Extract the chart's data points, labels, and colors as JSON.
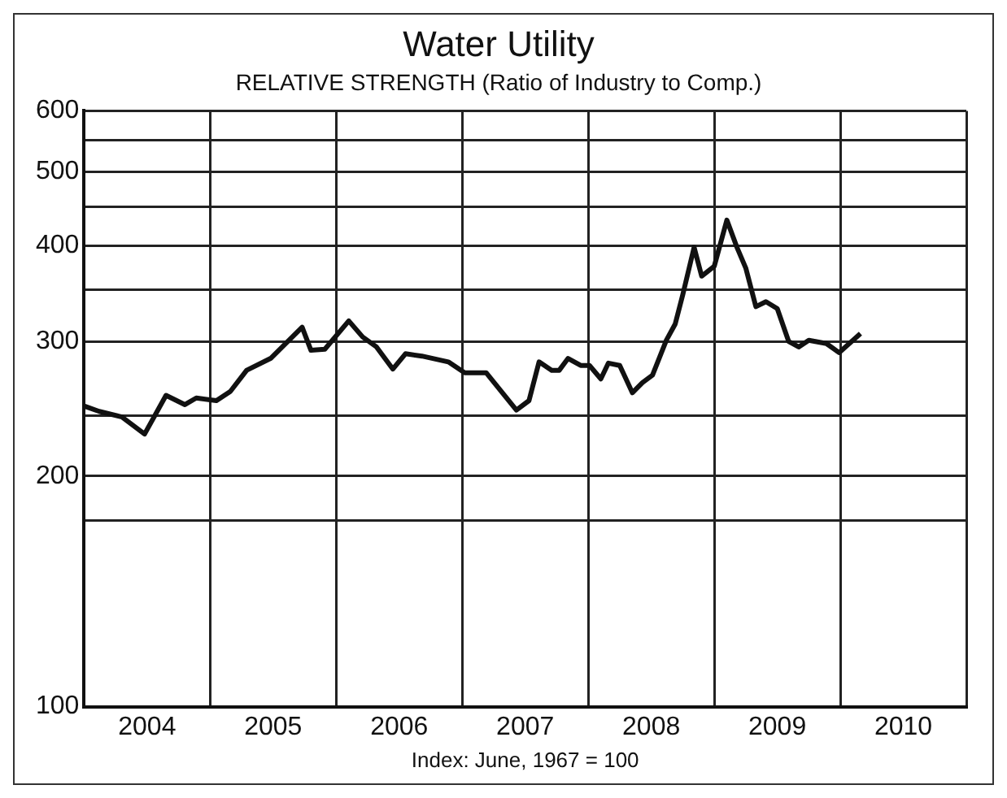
{
  "chart_data": {
    "type": "line",
    "title": "Water Utility",
    "subtitle": "RELATIVE STRENGTH (Ratio of Industry to Comp.)",
    "annotations": [
      "Index: June, 1967 = 100"
    ],
    "x": [
      2004.0,
      2004.12,
      2004.3,
      2004.48,
      2004.65,
      2004.8,
      2004.89,
      2005.05,
      2005.16,
      2005.29,
      2005.48,
      2005.73,
      2005.8,
      2005.91,
      2006.1,
      2006.21,
      2006.32,
      2006.45,
      2006.55,
      2006.68,
      2006.89,
      2007.02,
      2007.19,
      2007.43,
      2007.53,
      2007.61,
      2007.71,
      2007.77,
      2007.84,
      2007.94,
      2008.01,
      2008.1,
      2008.16,
      2008.25,
      2008.35,
      2008.43,
      2008.51,
      2008.62,
      2008.69,
      2008.75,
      2008.84,
      2008.9,
      2009.0,
      2009.1,
      2009.18,
      2009.25,
      2009.33,
      2009.41,
      2009.5,
      2009.59,
      2009.67,
      2009.75,
      2009.89,
      2009.99,
      2010.16
    ],
    "series": [
      {
        "color": "#111111",
        "values": [
          247,
          243,
          239,
          227,
          255,
          248,
          253,
          251,
          258,
          275,
          285,
          313,
          292,
          293,
          319,
          304,
          295,
          276,
          289,
          287,
          282,
          273,
          273,
          244,
          251,
          282,
          275,
          275,
          285,
          279,
          279,
          268,
          281,
          279,
          257,
          265,
          271,
          301,
          316,
          345,
          398,
          365,
          376,
          432,
          398,
          374,
          333,
          338,
          331,
          300,
          295,
          301,
          298,
          290,
          307
        ]
      }
    ],
    "xlim": [
      2004,
      2011
    ],
    "xticks": [
      {
        "value": 2004,
        "label": null
      },
      {
        "value": 2004.5,
        "label": "2004"
      },
      {
        "value": 2005,
        "label": null
      },
      {
        "value": 2005.5,
        "label": "2005"
      },
      {
        "value": 2006,
        "label": null
      },
      {
        "value": 2006.5,
        "label": "2006"
      },
      {
        "value": 2007,
        "label": null
      },
      {
        "value": 2007.5,
        "label": "2007"
      },
      {
        "value": 2008,
        "label": null
      },
      {
        "value": 2008.5,
        "label": "2008"
      },
      {
        "value": 2009,
        "label": null
      },
      {
        "value": 2009.5,
        "label": "2009"
      },
      {
        "value": 2010,
        "label": null
      },
      {
        "value": 2010.5,
        "label": "2010"
      },
      {
        "value": 2011,
        "label": null
      }
    ],
    "ylim": [
      100,
      600
    ],
    "yticks": [
      100,
      {
        "value": 175,
        "label": null
      },
      200,
      {
        "value": 240,
        "label": null
      },
      300,
      {
        "value": 350,
        "label": null
      },
      400,
      {
        "value": 450,
        "label": null
      },
      500,
      {
        "value": 550,
        "label": null
      },
      600
    ],
    "log": "y",
    "grid": true,
    "legend": false,
    "marker": "none",
    "line_style": "solid"
  }
}
